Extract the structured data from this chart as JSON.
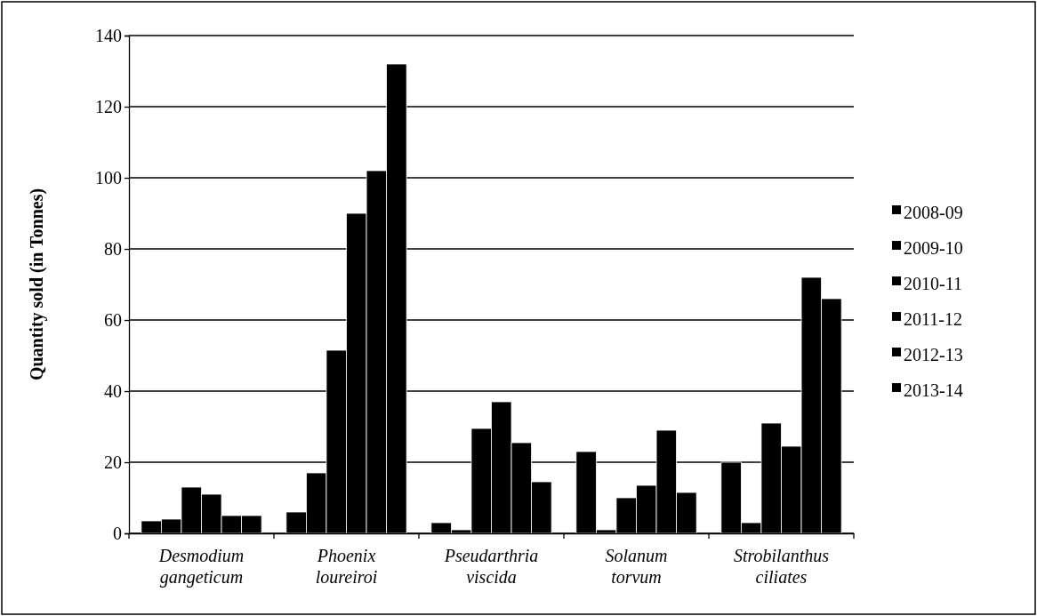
{
  "chart_data": {
    "type": "bar",
    "ylabel": "Quantity sold (in Tonnes)",
    "categories": [
      "Desmodium gangeticum",
      "Phoenix loureiroi",
      "Pseudarthria viscida",
      "Solanum torvum",
      "Strobilanthus ciliates"
    ],
    "series": [
      {
        "name": "2008-09",
        "color": "#000000",
        "values": [
          3.5,
          6,
          3,
          23,
          20
        ]
      },
      {
        "name": "2009-10",
        "color": "#000000",
        "values": [
          4,
          17,
          1,
          1,
          3
        ]
      },
      {
        "name": "2010-11",
        "color": "#000000",
        "values": [
          13,
          51.5,
          29.5,
          10,
          31
        ]
      },
      {
        "name": "2011-12",
        "color": "#000000",
        "values": [
          11,
          90,
          37,
          13.5,
          24.5
        ]
      },
      {
        "name": "2012-13",
        "color": "#000000",
        "values": [
          5,
          102,
          25.5,
          29,
          72
        ]
      },
      {
        "name": "2013-14",
        "color": "#000000",
        "values": [
          5,
          132,
          14.5,
          11.5,
          66
        ]
      }
    ],
    "ylim": [
      0,
      140
    ],
    "yticks": [
      0,
      20,
      40,
      60,
      80,
      100,
      120,
      140
    ],
    "grid": "y",
    "legend": "right"
  }
}
